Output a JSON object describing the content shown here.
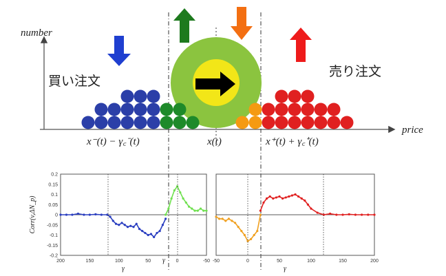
{
  "diagram": {
    "axis_y_label": "number",
    "axis_x_label": "price",
    "buy_label": "買い注文",
    "sell_label": "売り注文",
    "x_label_left": "x⁻(t) − γ꜀⁻(t)",
    "x_label_mid": "x(t)",
    "x_label_right": "x⁺(t) + γ꜀⁺(t)",
    "colors": {
      "buy": "#2b3fa8",
      "buy_near": "#1e8a2a",
      "sell": "#e02020",
      "sell_near": "#f59a12",
      "arrow_blue": "#1f3fd0",
      "arrow_green": "#1e7a1e",
      "arrow_orange": "#f36f12",
      "arrow_red": "#ee1b1b",
      "halo_outer": "#8bc43f",
      "halo_inner": "#f2e618"
    }
  },
  "chart_data": [
    {
      "type": "line",
      "ylabel": "Corr(v,ΔN_p)",
      "xlabel": "γ",
      "ylim": [
        -0.2,
        0.2
      ],
      "y_ticks": [
        "0.2",
        "0.15",
        "0.1",
        "0.05",
        "0",
        "-0.05",
        "-0.1",
        "-0.15",
        "-0.2"
      ],
      "x_ticks": [
        "200",
        "150",
        "100",
        "50",
        "0",
        "-50"
      ],
      "x_marker_label": "γ",
      "series": [
        {
          "color": "#2a3ec0",
          "x": [
            200,
            190,
            180,
            170,
            160,
            150,
            140,
            130,
            120,
            115,
            110,
            105,
            100,
            95,
            90,
            85,
            80,
            75,
            70,
            65,
            60,
            55,
            50,
            45,
            40,
            35,
            30,
            25,
            20
          ],
          "y": [
            0,
            0,
            0,
            0.005,
            0,
            0,
            0.002,
            0,
            0,
            -0.01,
            -0.03,
            -0.045,
            -0.05,
            -0.04,
            -0.05,
            -0.06,
            -0.055,
            -0.06,
            -0.045,
            -0.07,
            -0.08,
            -0.09,
            -0.1,
            -0.095,
            -0.11,
            -0.09,
            -0.08,
            -0.05,
            -0.02
          ]
        },
        {
          "color": "#6fe04f",
          "x": [
            20,
            15,
            10,
            5,
            0,
            -5,
            -10,
            -15,
            -20,
            -25,
            -30,
            -35,
            -40,
            -45,
            -50
          ],
          "y": [
            0,
            0.03,
            0.08,
            0.12,
            0.14,
            0.11,
            0.08,
            0.06,
            0.04,
            0.03,
            0.02,
            0.02,
            0.03,
            0.02,
            0.02
          ]
        }
      ]
    },
    {
      "type": "line",
      "xlabel": "γ",
      "ylim": [
        -0.2,
        0.2
      ],
      "x_ticks": [
        "-50",
        "0",
        "50",
        "100",
        "150",
        "200"
      ],
      "series": [
        {
          "color": "#f0a020",
          "x": [
            -50,
            -45,
            -40,
            -35,
            -30,
            -25,
            -20,
            -15,
            -10,
            -5,
            0,
            5,
            10,
            15,
            20
          ],
          "y": [
            -0.01,
            -0.02,
            -0.02,
            -0.03,
            -0.02,
            -0.03,
            -0.04,
            -0.06,
            -0.08,
            -0.1,
            -0.13,
            -0.12,
            -0.1,
            -0.08,
            0
          ]
        },
        {
          "color": "#e02020",
          "x": [
            20,
            25,
            30,
            35,
            40,
            45,
            50,
            55,
            60,
            65,
            70,
            75,
            80,
            85,
            90,
            95,
            100,
            110,
            120,
            130,
            140,
            150,
            160,
            170,
            180,
            190,
            200
          ],
          "y": [
            0.02,
            0.06,
            0.08,
            0.09,
            0.08,
            0.085,
            0.09,
            0.08,
            0.085,
            0.09,
            0.095,
            0.1,
            0.09,
            0.08,
            0.07,
            0.05,
            0.03,
            0.01,
            0,
            0.005,
            0,
            0,
            0.002,
            0,
            0,
            0,
            0
          ]
        }
      ]
    }
  ]
}
